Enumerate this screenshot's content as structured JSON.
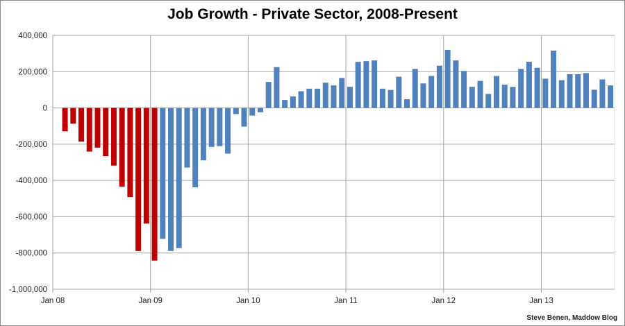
{
  "chart_data": {
    "type": "bar",
    "title": "Job Growth - Private Sector, 2008-Present",
    "xlabel": "",
    "ylabel": "",
    "credit": "Steve Benen, Maddow Blog",
    "ylim": [
      -1000000,
      400000
    ],
    "yticks": [
      400000,
      200000,
      0,
      -200000,
      -400000,
      -600000,
      -800000,
      -1000000
    ],
    "ytick_labels": [
      "400,000",
      "200,000",
      "0",
      "-200,000",
      "-400,000",
      "-600,000",
      "-800,000",
      "-1,000,000"
    ],
    "xtick_labels": [
      "Jan 08",
      "Jan 09",
      "Jan 10",
      "Jan 11",
      "Jan 12",
      "Jan 13"
    ],
    "xlim": [
      "2008-01",
      "2013-09"
    ],
    "grid": true,
    "colors": {
      "bush": "#c00000",
      "obama": "#4f81bd"
    },
    "categories": [
      "2008-02",
      "2008-03",
      "2008-04",
      "2008-05",
      "2008-06",
      "2008-07",
      "2008-08",
      "2008-09",
      "2008-10",
      "2008-11",
      "2008-12",
      "2009-01",
      "2009-02",
      "2009-03",
      "2009-04",
      "2009-05",
      "2009-06",
      "2009-07",
      "2009-08",
      "2009-09",
      "2009-10",
      "2009-11",
      "2009-12",
      "2010-01",
      "2010-02",
      "2010-03",
      "2010-04",
      "2010-05",
      "2010-06",
      "2010-07",
      "2010-08",
      "2010-09",
      "2010-10",
      "2010-11",
      "2010-12",
      "2011-01",
      "2011-02",
      "2011-03",
      "2011-04",
      "2011-05",
      "2011-06",
      "2011-07",
      "2011-08",
      "2011-09",
      "2011-10",
      "2011-11",
      "2011-12",
      "2012-01",
      "2012-02",
      "2012-03",
      "2012-04",
      "2012-05",
      "2012-06",
      "2012-07",
      "2012-08",
      "2012-09",
      "2012-10",
      "2012-11",
      "2012-12",
      "2013-01",
      "2013-02",
      "2013-03",
      "2013-04",
      "2013-05",
      "2013-06",
      "2013-07",
      "2013-08",
      "2013-09"
    ],
    "values": [
      -129000,
      -87000,
      -186000,
      -241000,
      -219000,
      -266000,
      -318000,
      -434000,
      -492000,
      -789000,
      -638000,
      -842000,
      -722000,
      -789000,
      -773000,
      -329000,
      -438000,
      -289000,
      -215000,
      -211000,
      -252000,
      -34000,
      -103000,
      -42000,
      -24000,
      143000,
      225000,
      44000,
      63000,
      92000,
      106000,
      106000,
      139000,
      124000,
      165000,
      116000,
      254000,
      258000,
      262000,
      106000,
      99000,
      172000,
      48000,
      215000,
      135000,
      176000,
      233000,
      320000,
      262000,
      204000,
      116000,
      149000,
      77000,
      176000,
      128000,
      116000,
      215000,
      254000,
      221000,
      161000,
      316000,
      153000,
      186000,
      186000,
      192000,
      100000,
      157000,
      124000
    ],
    "series_color_by_category": {
      "bush": [
        "2008-02",
        "2009-01"
      ],
      "obama": [
        "2009-02",
        "2013-09"
      ]
    }
  }
}
